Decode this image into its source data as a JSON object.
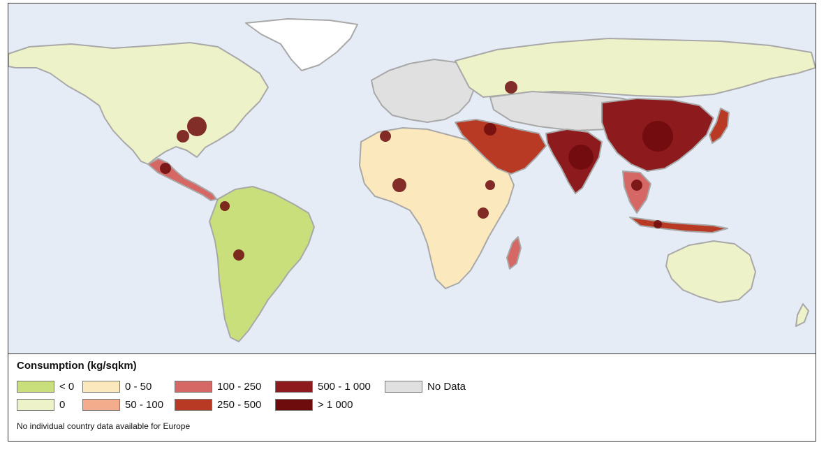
{
  "legend": {
    "title": "Consumption (kg/sqkm)",
    "items": [
      {
        "label": "< 0",
        "color": "#c9df7c"
      },
      {
        "label": "0",
        "color": "#eef2c8"
      },
      {
        "label": "0 - 50",
        "color": "#fbe8bc"
      },
      {
        "label": "50 - 100",
        "color": "#f3ad8c"
      },
      {
        "label": "100 - 250",
        "color": "#d56864"
      },
      {
        "label": "250 - 500",
        "color": "#b83a25"
      },
      {
        "label": "500 - 1 000",
        "color": "#8d1a1c"
      },
      {
        "label": "> 1 000",
        "color": "#6e0b0d"
      },
      {
        "label": "No Data",
        "color": "#e0e0e0"
      }
    ],
    "note": "No individual country data available for Europe"
  },
  "colors": {
    "ocean": "#e6ecf6",
    "border": "#a8a8a8"
  }
}
